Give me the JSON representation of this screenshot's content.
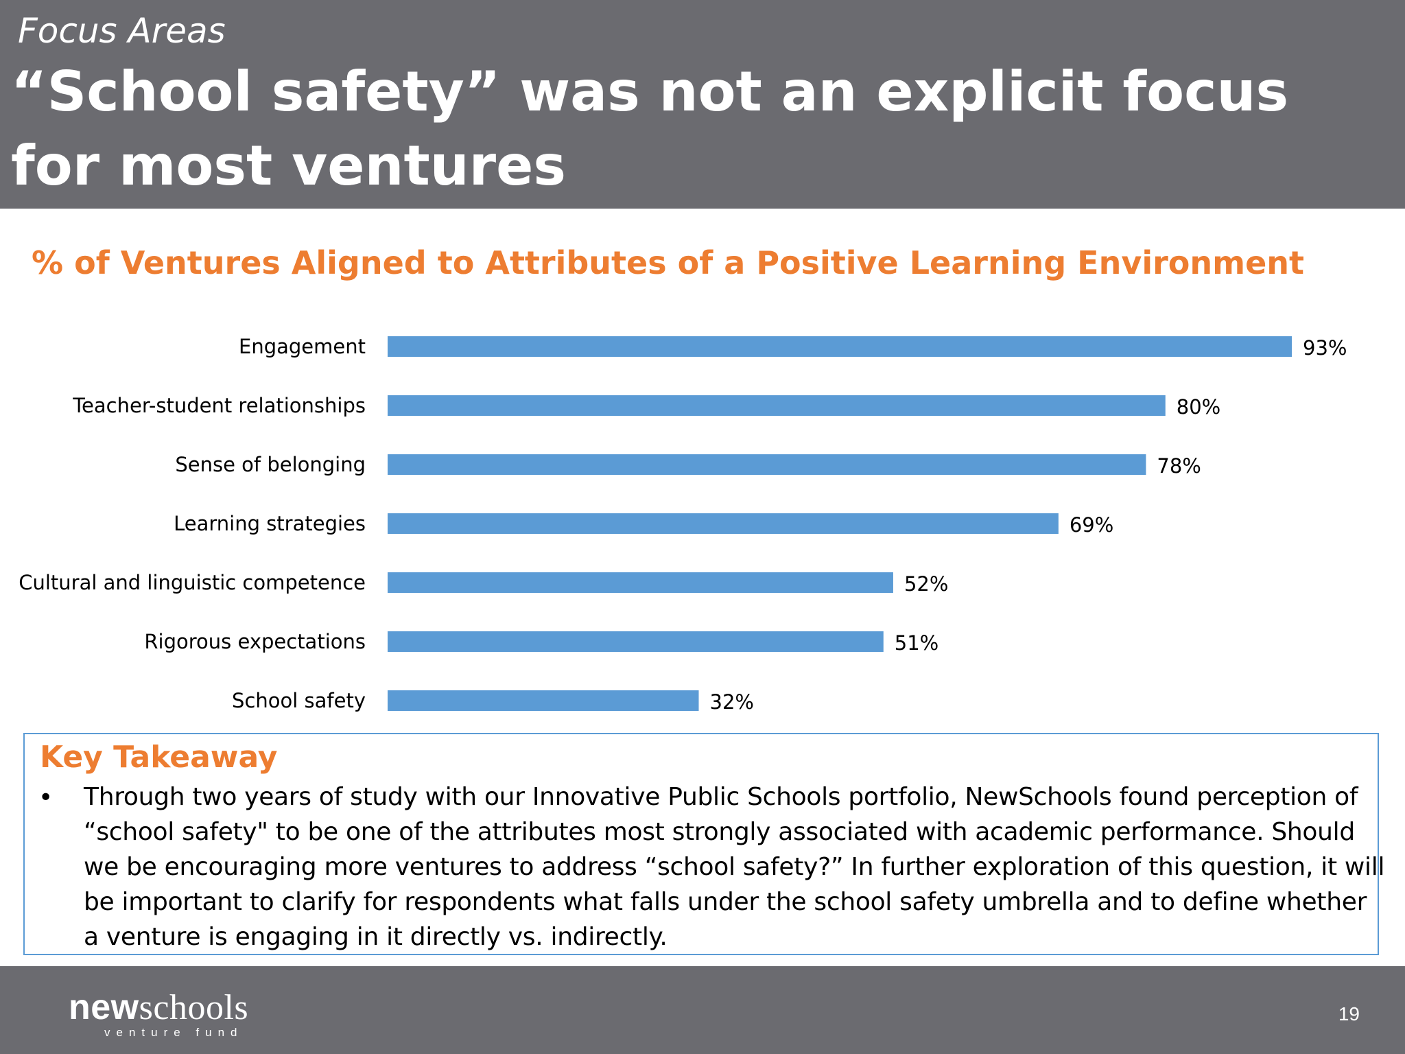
{
  "header": {
    "kicker": "Focus Areas",
    "headline": "“School safety” was not an explicit focus for most ventures"
  },
  "chart_data": {
    "type": "bar",
    "orientation": "horizontal",
    "title": "% of Ventures Aligned to Attributes of a Positive Learning Environment",
    "categories": [
      "Engagement",
      "Teacher-student relationships",
      "Sense of belonging",
      "Learning strategies",
      "Cultural and linguistic competence",
      "Rigorous expectations",
      "School safety"
    ],
    "values": [
      93,
      80,
      78,
      69,
      52,
      51,
      32
    ],
    "value_labels": [
      "93%",
      "80%",
      "78%",
      "69%",
      "52%",
      "51%",
      "32%"
    ],
    "xlim": [
      0,
      100
    ],
    "xlabel": "",
    "ylabel": "",
    "grid": false,
    "legend": "none",
    "bar_color": "#5b9bd5"
  },
  "takeaway": {
    "title": "Key Takeaway",
    "bullet": "•",
    "text": "Through two years of study with our Innovative Public Schools portfolio, NewSchools found perception of “school safety\" to be one of the attributes most strongly associated with academic performance. Should we be encouraging more ventures to address “school safety?”  In further exploration of this question, it will be important to clarify for respondents what falls under the school safety umbrella and to define whether a venture is engaging in it directly vs. indirectly."
  },
  "footer": {
    "logo_bold": "new",
    "logo_rest": "schools",
    "logo_sub": "venture fund",
    "page_number": "19"
  }
}
